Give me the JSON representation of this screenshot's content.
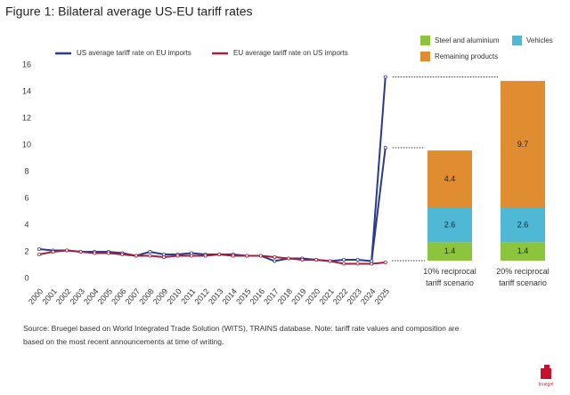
{
  "title": "Figure 1: Bilateral average US-EU tariff rates",
  "source": "Source: Bruegel based on World Integrated Trade Solution (WITS), TRAINS database. Note: tariff rate values and composition are based on the most recent announcements at time of writing.",
  "logo": "bruegel",
  "chart_data": [
    {
      "type": "line",
      "categories": [
        "2000",
        "2001",
        "2002",
        "2003",
        "2004",
        "2005",
        "2006",
        "2007",
        "2008",
        "2009",
        "2010",
        "2011",
        "2012",
        "2013",
        "2014",
        "2015",
        "2016",
        "2017",
        "2018",
        "2019",
        "2020",
        "2021",
        "2022",
        "2023",
        "2024",
        "2025"
      ],
      "series": [
        {
          "name": "US average tariff rate on EU imports",
          "color": "#2b3a8c",
          "values": [
            2.2,
            2.1,
            2.1,
            2.0,
            2.0,
            2.0,
            1.9,
            1.7,
            2.0,
            1.8,
            1.8,
            1.9,
            1.8,
            1.8,
            1.8,
            1.7,
            1.7,
            1.3,
            1.5,
            1.5,
            1.4,
            1.3,
            1.4,
            1.4,
            1.3,
            15.1
          ]
        },
        {
          "name": "EU average tariff rate on US imports",
          "color": "#a3203f",
          "values": [
            1.8,
            2.0,
            2.1,
            2.0,
            1.9,
            1.9,
            1.8,
            1.7,
            1.7,
            1.6,
            1.7,
            1.7,
            1.7,
            1.8,
            1.7,
            1.7,
            1.7,
            1.6,
            1.5,
            1.4,
            1.4,
            1.3,
            1.1,
            1.1,
            1.1,
            1.2
          ]
        },
        {
          "color": "#2b3a8c",
          "values": [
            null,
            null,
            null,
            null,
            null,
            null,
            null,
            null,
            null,
            null,
            null,
            null,
            null,
            null,
            null,
            null,
            null,
            null,
            null,
            null,
            null,
            null,
            null,
            null,
            1.3,
            9.8
          ]
        }
      ],
      "ylim": [
        0,
        16
      ],
      "yticks": [
        0,
        2,
        4,
        6,
        8,
        10,
        12,
        14,
        16
      ],
      "grid": false,
      "legend": "top"
    },
    {
      "type": "bar",
      "stacked": true,
      "categories": [
        "10% reciprocal tariff scenario",
        "20% reciprocal tariff scenario"
      ],
      "series": [
        {
          "name": "Steel and aluminium",
          "color": "#8cc43e",
          "values": [
            1.4,
            1.4
          ]
        },
        {
          "name": "Vehicles",
          "color": "#4fb8d4",
          "values": [
            2.6,
            2.6
          ]
        },
        {
          "name": "Remaining products",
          "color": "#e08c30",
          "values": [
            4.4,
            9.7
          ]
        }
      ],
      "ylim": [
        0,
        16
      ],
      "legend": "top-right"
    }
  ]
}
